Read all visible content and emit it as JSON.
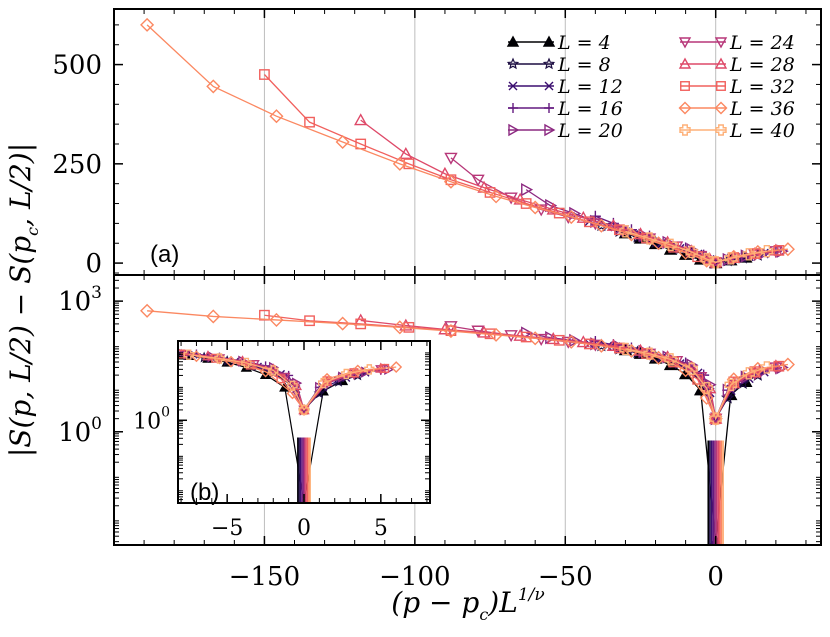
{
  "figure": {
    "xlabel": "(p − p_c)L^{1/ν}",
    "ylabel": "|S(p, L/2) − S(p_c, L/2)|"
  },
  "chart_data": [
    {
      "id": "a",
      "type": "line",
      "panel_label": "(a)",
      "xlim": [
        -200,
        35
      ],
      "ylim": [
        -30,
        640
      ],
      "xticks": [
        -150,
        -100,
        -50,
        0
      ],
      "yticks": [
        0,
        250,
        500
      ],
      "ytick_labels": [
        "0",
        "250",
        "500"
      ],
      "grid_x": [
        -150,
        -100,
        -50,
        0
      ],
      "legend_position": "top-right",
      "series": [
        {
          "name": "L = 4",
          "label": "L = 4",
          "color": "#000004",
          "marker": "triangle-up-filled",
          "x": [
            -30,
            -25,
            -20,
            -15,
            -10,
            -5,
            0,
            5,
            10
          ],
          "y": [
            75,
            62,
            48,
            34,
            21,
            9,
            0,
            7,
            14
          ]
        },
        {
          "name": "L = 8",
          "label": "L = 8",
          "color": "#1b0c41",
          "marker": "star",
          "x": [
            -38,
            -32,
            -26,
            -20,
            -14,
            -8,
            -3,
            0,
            4,
            9,
            14
          ],
          "y": [
            95,
            80,
            66,
            52,
            38,
            24,
            10,
            2,
            6,
            13,
            20
          ]
        },
        {
          "name": "L = 12",
          "label": "L = 12",
          "color": "#3b0f70",
          "marker": "x",
          "x": [
            -42,
            -36,
            -30,
            -24,
            -18,
            -12,
            -6,
            -2,
            0,
            5,
            11,
            16
          ],
          "y": [
            105,
            92,
            78,
            64,
            50,
            36,
            22,
            8,
            2,
            9,
            17,
            24
          ]
        },
        {
          "name": "L = 16",
          "label": "L = 16",
          "color": "#641a80",
          "marker": "plus",
          "x": [
            -40,
            -34,
            -28,
            -22,
            -16,
            -10,
            -4,
            0,
            4,
            9,
            15,
            20
          ],
          "y": [
            118,
            100,
            84,
            68,
            52,
            38,
            20,
            2,
            9,
            17,
            24,
            28
          ]
        },
        {
          "name": "L = 20",
          "label": "L = 20",
          "color": "#8c2981",
          "marker": "triangle-right",
          "x": [
            -63,
            -55,
            -47,
            -40,
            -32,
            -24,
            -16,
            -8,
            -2,
            0,
            4,
            10,
            16,
            22
          ],
          "y": [
            185,
            145,
            125,
            105,
            88,
            70,
            52,
            34,
            12,
            2,
            9,
            18,
            25,
            30
          ]
        },
        {
          "name": "L = 24",
          "label": "L = 24",
          "color": "#b73779",
          "marker": "triangle-down",
          "x": [
            -88,
            -79,
            -68,
            -58,
            -49,
            -40,
            -31,
            -22,
            -13,
            -5,
            0,
            6,
            13,
            20
          ],
          "y": [
            265,
            210,
            165,
            135,
            116,
            100,
            82,
            62,
            42,
            18,
            2,
            12,
            22,
            30
          ]
        },
        {
          "name": "L = 28",
          "label": "L = 28",
          "color": "#de4968",
          "marker": "triangle-up",
          "x": [
            -118,
            -103,
            -90,
            -77,
            -65,
            -54,
            -44,
            -34,
            -25,
            -16,
            -8,
            -2,
            0,
            6,
            13,
            20
          ],
          "y": [
            360,
            275,
            225,
            190,
            160,
            135,
            114,
            94,
            73,
            52,
            30,
            10,
            2,
            13,
            23,
            32
          ]
        },
        {
          "name": "L = 32",
          "label": "L = 32",
          "color": "#f1605d",
          "marker": "square",
          "x": [
            -150,
            -135,
            -118,
            -102,
            -88,
            -75,
            -63,
            -52,
            -42,
            -32,
            -23,
            -14,
            -6,
            0,
            6,
            13,
            21
          ],
          "y": [
            475,
            355,
            300,
            250,
            210,
            178,
            150,
            126,
            104,
            84,
            63,
            40,
            16,
            2,
            14,
            24,
            32
          ]
        },
        {
          "name": "L = 36",
          "label": "L = 36",
          "color": "#fb8861",
          "marker": "diamond",
          "x": [
            -189,
            -167,
            -146,
            -124,
            -105,
            -88,
            -73,
            -60,
            -48,
            -38,
            -28,
            -19,
            -10,
            -3,
            0,
            6,
            14,
            24
          ],
          "y": [
            600,
            445,
            370,
            305,
            250,
            205,
            168,
            140,
            116,
            94,
            72,
            50,
            26,
            6,
            2,
            16,
            28,
            35
          ]
        },
        {
          "name": "L = 40",
          "label": "L = 40",
          "color": "#feb078",
          "marker": "plus-square",
          "x": [
            -30,
            -22,
            -15,
            -8,
            -3,
            0,
            5,
            11,
            17
          ],
          "y": [
            80,
            62,
            46,
            28,
            10,
            2,
            12,
            22,
            30
          ]
        }
      ]
    },
    {
      "id": "b",
      "type": "line",
      "yscale": "log",
      "xlim": [
        -200,
        35
      ],
      "ylim_log10": [
        -2.6,
        3.6
      ],
      "xticks": [
        -150,
        -100,
        -50,
        0
      ],
      "yticks_log10": [
        0,
        3
      ],
      "ytick_labels": [
        "10^0",
        "10^3"
      ],
      "description": "same data as panel (a) on a logarithmic y axis"
    },
    {
      "id": "b-inset",
      "type": "line",
      "panel_label": "(b)",
      "yscale": "log",
      "xlim": [
        -8.2,
        8.2
      ],
      "ylim_log10": [
        -2.4,
        2.3
      ],
      "xticks": [
        -5,
        0,
        5
      ],
      "xtick_labels": [
        "−5",
        "0",
        "5"
      ],
      "yticks_log10": [
        0
      ],
      "ytick_labels": [
        "10^0"
      ],
      "description": "collapse of all system sizes versus (p − p_c)L^{1/ν}, zoomed near the critical point"
    }
  ]
}
